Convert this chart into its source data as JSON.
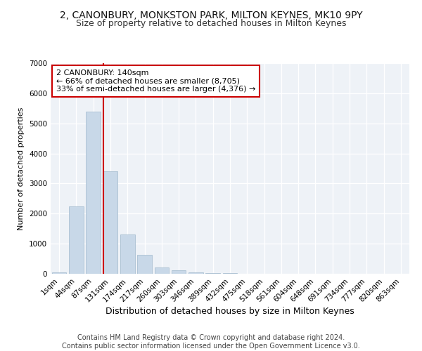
{
  "title1": "2, CANONBURY, MONKSTON PARK, MILTON KEYNES, MK10 9PY",
  "title2": "Size of property relative to detached houses in Milton Keynes",
  "xlabel": "Distribution of detached houses by size in Milton Keynes",
  "ylabel": "Number of detached properties",
  "categories": [
    "1sqm",
    "44sqm",
    "87sqm",
    "131sqm",
    "174sqm",
    "217sqm",
    "260sqm",
    "303sqm",
    "346sqm",
    "389sqm",
    "432sqm",
    "475sqm",
    "518sqm",
    "561sqm",
    "604sqm",
    "648sqm",
    "691sqm",
    "734sqm",
    "777sqm",
    "820sqm",
    "863sqm"
  ],
  "values": [
    55,
    2250,
    5400,
    3400,
    1300,
    630,
    200,
    115,
    55,
    25,
    15,
    8,
    4,
    2,
    1,
    1,
    0,
    0,
    0,
    0,
    0
  ],
  "bar_color": "#c8d8e8",
  "bar_edgecolor": "#a0b8cc",
  "vline_color": "#cc0000",
  "annotation_text": "2 CANONBURY: 140sqm\n← 66% of detached houses are smaller (8,705)\n33% of semi-detached houses are larger (4,376) →",
  "annotation_box_color": "#ffffff",
  "annotation_box_edgecolor": "#cc0000",
  "ylim": [
    0,
    7000
  ],
  "yticks": [
    0,
    1000,
    2000,
    3000,
    4000,
    5000,
    6000,
    7000
  ],
  "background_color": "#eef2f7",
  "footer_text": "Contains HM Land Registry data © Crown copyright and database right 2024.\nContains public sector information licensed under the Open Government Licence v3.0.",
  "title1_fontsize": 10,
  "title2_fontsize": 9,
  "xlabel_fontsize": 9,
  "ylabel_fontsize": 8,
  "tick_fontsize": 7.5,
  "footer_fontsize": 7,
  "annot_fontsize": 8
}
